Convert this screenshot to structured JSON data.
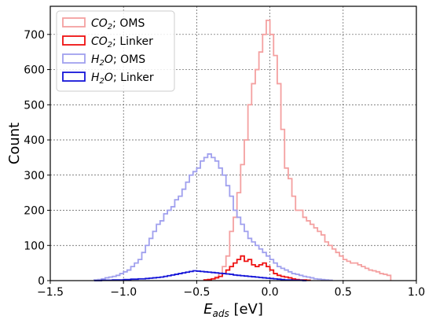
{
  "chart_data": {
    "type": "histogram",
    "xlabel": "E_ads [eV]",
    "xlabel_main": "E",
    "xlabel_sub": "ads",
    "xlabel_unit": " [eV]",
    "ylabel": "Count",
    "xlim": [
      -1.5,
      1.0
    ],
    "ylim": [
      0,
      780
    ],
    "xticks": [
      -1.5,
      -1.0,
      -0.5,
      0.0,
      0.5,
      1.0
    ],
    "xtick_labels": [
      "−1.5",
      "−1.0",
      "−0.5",
      "0.0",
      "0.5",
      "1.0"
    ],
    "yticks": [
      0,
      100,
      200,
      300,
      400,
      500,
      600,
      700
    ],
    "ytick_labels": [
      "0",
      "100",
      "200",
      "300",
      "400",
      "500",
      "600",
      "700"
    ],
    "grid": true,
    "legend_position": "top-left",
    "bin_width": 0.025,
    "series": [
      {
        "name": "CO2; OMS",
        "legend_main": "CO",
        "legend_sub": "2",
        "legend_rest": "; OMS",
        "color": "#f4a0a0",
        "x_start": -0.45,
        "counts": [
          2,
          3,
          5,
          10,
          20,
          40,
          70,
          140,
          180,
          250,
          330,
          400,
          500,
          560,
          600,
          650,
          700,
          740,
          700,
          640,
          560,
          430,
          320,
          290,
          240,
          200,
          200,
          180,
          170,
          160,
          150,
          140,
          130,
          110,
          100,
          90,
          80,
          70,
          60,
          55,
          50,
          50,
          45,
          40,
          35,
          30,
          28,
          25,
          20,
          18,
          15
        ]
      },
      {
        "name": "CO2; Linker",
        "legend_main": "CO",
        "legend_sub": "2",
        "legend_rest": "; Linker",
        "color": "#ee1111",
        "x_start": -0.45,
        "counts": [
          2,
          3,
          5,
          8,
          12,
          20,
          30,
          40,
          50,
          60,
          70,
          55,
          60,
          45,
          40,
          45,
          50,
          40,
          30,
          20,
          15,
          12,
          10,
          8,
          5,
          3,
          2,
          2,
          1
        ]
      },
      {
        "name": "H2O; OMS",
        "legend_main": "H",
        "legend_sub": "2",
        "legend_rest": "O; OMS",
        "color": "#a0a0ee",
        "x_start": -1.2,
        "counts": [
          2,
          3,
          5,
          8,
          10,
          12,
          15,
          20,
          25,
          30,
          40,
          50,
          60,
          80,
          100,
          120,
          140,
          160,
          170,
          190,
          200,
          210,
          230,
          240,
          260,
          280,
          300,
          310,
          320,
          340,
          350,
          360,
          350,
          340,
          320,
          300,
          270,
          240,
          200,
          180,
          160,
          140,
          120,
          110,
          100,
          90,
          80,
          70,
          60,
          50,
          40,
          35,
          30,
          25,
          20,
          18,
          15,
          12,
          10,
          8,
          5,
          4,
          3,
          2,
          1
        ]
      },
      {
        "name": "H2O; Linker",
        "legend_main": "H",
        "legend_sub": "2",
        "legend_rest": "O; Linker",
        "color": "#1515d8",
        "x_start": -1.2,
        "counts": [
          0,
          0,
          1,
          1,
          1,
          2,
          2,
          2,
          3,
          3,
          4,
          4,
          5,
          5,
          6,
          7,
          8,
          9,
          10,
          12,
          14,
          16,
          18,
          20,
          22,
          24,
          26,
          28,
          27,
          26,
          25,
          24,
          23,
          22,
          21,
          20,
          19,
          18,
          16,
          15,
          14,
          13,
          12,
          11,
          10,
          9,
          8,
          7,
          6,
          5,
          4,
          3,
          2,
          2,
          1,
          1,
          1,
          0
        ]
      }
    ]
  }
}
